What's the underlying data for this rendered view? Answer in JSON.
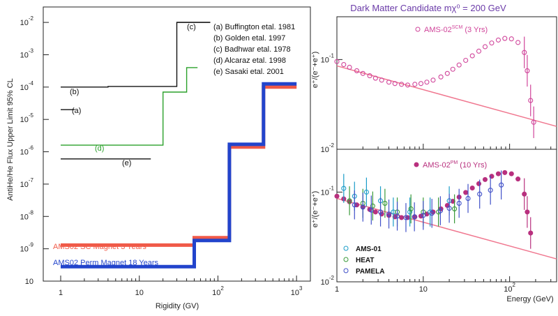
{
  "chart_data": [
    {
      "type": "line",
      "xlabel": "Rigidity (GV)",
      "ylabel": "AntiHe/He Flux  Upper Limit  95% CL",
      "xscale": "log",
      "yscale": "log",
      "xlim": [
        0.6,
        1500
      ],
      "ylim": [
        1e-10,
        0.03
      ],
      "x_ticks": [
        {
          "base": "1",
          "exp": ""
        },
        {
          "base": "10",
          "exp": ""
        },
        {
          "base": "10",
          "exp": "2"
        },
        {
          "base": "10",
          "exp": "3"
        }
      ],
      "y_ticks": [
        {
          "base": "10",
          "exp": "-2"
        },
        {
          "base": "10",
          "exp": "-3"
        },
        {
          "base": "10",
          "exp": "-4"
        },
        {
          "base": "10",
          "exp": "-5"
        },
        {
          "base": "10",
          "exp": "-6"
        },
        {
          "base": "10",
          "exp": "-7"
        },
        {
          "base": "10",
          "exp": "-8"
        },
        {
          "base": "10",
          "exp": "-9"
        },
        {
          "base": "10",
          "exp": ""
        }
      ],
      "legend": [
        "(a) Buffington etal. 1981",
        "(b) Golden etal. 1997",
        "(c) Badhwar etal. 1978",
        "(d) Alcaraz etal. 1998",
        "(e) Sasaki etal. 2001"
      ],
      "series": [
        {
          "name": "(a)",
          "color": "#111111",
          "points": [
            [
              1,
              2e-05
            ],
            [
              1.5,
              2e-05
            ]
          ]
        },
        {
          "name": "(b)",
          "color": "#111111",
          "points": [
            [
              1,
              0.0001
            ],
            [
              4,
              0.0001
            ],
            [
              4,
              0.000105
            ],
            [
              30,
              0.000105
            ],
            [
              30,
              0.01
            ],
            [
              80,
              0.01
            ]
          ]
        },
        {
          "name": "(c)",
          "color": "#111111",
          "points": [
            [
              30,
              0.01
            ],
            [
              80,
              0.01
            ]
          ]
        },
        {
          "name": "(d)",
          "color": "#2aa02a",
          "points": [
            [
              1,
              1.6e-06
            ],
            [
              20,
              1.6e-06
            ],
            [
              20,
              7e-05
            ],
            [
              40,
              7e-05
            ],
            [
              40,
              0.0004
            ],
            [
              55,
              0.0004
            ]
          ]
        },
        {
          "name": "(e)",
          "color": "#111111",
          "points": [
            [
              1,
              6e-07
            ],
            [
              14,
              6e-07
            ]
          ]
        },
        {
          "name": "AMS02 SC Magnet 3 Years",
          "color": "#f05a48",
          "points": [
            [
              1,
              1.3e-09
            ],
            [
              50,
              1.3e-09
            ],
            [
              50,
              2.2e-09
            ],
            [
              140,
              2.2e-09
            ],
            [
              140,
              1.4e-06
            ],
            [
              380,
              1.4e-06
            ],
            [
              380,
              0.0001
            ],
            [
              1000,
              0.0001
            ]
          ]
        },
        {
          "name": "AMS02 Perm Magnet 18 Years",
          "color": "#2244cc",
          "points": [
            [
              1,
              2.8e-10
            ],
            [
              50,
              2.8e-10
            ],
            [
              50,
              1.8e-09
            ],
            [
              140,
              1.8e-09
            ],
            [
              140,
              1.7e-06
            ],
            [
              380,
              1.7e-06
            ],
            [
              380,
              0.000125
            ],
            [
              1000,
              0.000125
            ]
          ]
        }
      ],
      "labels": [
        "(a)",
        "(b)",
        "(c)",
        "(d)",
        "(e)",
        "AMS02 SC Magnet 3 Years",
        "AMS02 Perm Magnet 18 Years"
      ]
    },
    {
      "type": "scatter",
      "title": "Dark Matter Candidate mχ⁰ = 200 GeV",
      "ylabel": "e⁺/(e⁻+e⁺)",
      "xscale": "log",
      "yscale": "log",
      "xlim": [
        1,
        350
      ],
      "ylim": [
        0.01,
        0.3
      ],
      "y_ticks": [
        {
          "base": "10",
          "exp": "-1"
        },
        {
          "base": "10",
          "exp": "-2"
        }
      ],
      "legend": [
        {
          "base": "AMS-02",
          "sup": "SCM",
          "rest": " (3 Yrs)"
        }
      ],
      "series": [
        {
          "name": "AMS-02 SCM (3 Yrs)",
          "color": "#d0449a",
          "marker": "open-circle",
          "x": [
            1,
            1.2,
            1.4,
            1.7,
            2,
            2.4,
            2.8,
            3.3,
            4,
            4.7,
            5.6,
            6.6,
            8,
            9.4,
            11,
            13,
            16,
            19,
            22,
            26,
            31,
            37,
            44,
            52,
            62,
            74,
            88,
            105,
            125,
            148,
            160,
            175,
            190
          ],
          "y": [
            0.095,
            0.088,
            0.082,
            0.075,
            0.07,
            0.066,
            0.062,
            0.059,
            0.056,
            0.054,
            0.053,
            0.052,
            0.053,
            0.054,
            0.056,
            0.059,
            0.064,
            0.07,
            0.078,
            0.087,
            0.098,
            0.11,
            0.124,
            0.139,
            0.153,
            0.165,
            0.172,
            0.17,
            0.155,
            0.12,
            0.075,
            0.035,
            0.02
          ]
        }
      ]
    },
    {
      "type": "scatter",
      "ylabel": "e⁺/(e⁻+e⁺)",
      "xlabel": "Energy (GeV)",
      "xscale": "log",
      "yscale": "log",
      "xlim": [
        1,
        350
      ],
      "ylim": [
        0.01,
        0.3
      ],
      "x_ticks": [
        {
          "base": "1",
          "exp": ""
        },
        {
          "base": "10",
          "exp": ""
        },
        {
          "base": "10",
          "exp": "2"
        }
      ],
      "y_ticks": [
        {
          "base": "10",
          "exp": "-1"
        },
        {
          "base": "10",
          "exp": "-2"
        }
      ],
      "legend": [
        {
          "base": "AMS-02",
          "sup": "PM",
          "rest": " (10 Yrs)"
        },
        {
          "base": "AMS-01",
          "sup": "",
          "rest": ""
        },
        {
          "base": "HEAT",
          "sup": "",
          "rest": ""
        },
        {
          "base": "PAMELA",
          "sup": "",
          "rest": ""
        }
      ],
      "series": [
        {
          "name": "AMS-02 PM (10 Yrs)",
          "color": "#b8307e",
          "marker": "filled-circle",
          "x": [
            1,
            1.2,
            1.4,
            1.7,
            2,
            2.4,
            2.8,
            3.3,
            4,
            4.7,
            5.6,
            6.6,
            8,
            9.4,
            11,
            13,
            16,
            19,
            22,
            26,
            31,
            37,
            44,
            52,
            62,
            74,
            88,
            105,
            125,
            148,
            160,
            175
          ],
          "y": [
            0.09,
            0.084,
            0.078,
            0.072,
            0.068,
            0.064,
            0.06,
            0.057,
            0.055,
            0.053,
            0.052,
            0.052,
            0.053,
            0.054,
            0.057,
            0.06,
            0.065,
            0.071,
            0.079,
            0.088,
            0.099,
            0.111,
            0.124,
            0.138,
            0.15,
            0.16,
            0.165,
            0.16,
            0.14,
            0.095,
            0.06,
            0.035
          ]
        },
        {
          "name": "AMS-01",
          "color": "#1a9cc8",
          "marker": "open-circle",
          "x": [
            1.2,
            1.6,
            2.2,
            3.2,
            4.5,
            7,
            12,
            20
          ],
          "y": [
            0.11,
            0.09,
            0.1,
            0.08,
            0.06,
            0.06,
            0.06,
            0.08
          ]
        },
        {
          "name": "HEAT",
          "color": "#3a9a3a",
          "marker": "open-circle",
          "x": [
            1.4,
            2,
            2.6,
            3.6,
            5,
            7.2,
            10,
            15,
            23
          ],
          "y": [
            0.08,
            0.075,
            0.07,
            0.075,
            0.06,
            0.065,
            0.06,
            0.06,
            0.065
          ]
        },
        {
          "name": "PAMELA",
          "color": "#4050c8",
          "marker": "open-circle",
          "x": [
            1.6,
            2,
            2.5,
            3.2,
            4,
            5,
            6.3,
            7.9,
            10,
            12.6,
            15.8,
            20,
            26,
            33,
            45,
            60,
            80
          ],
          "y": [
            0.072,
            0.068,
            0.063,
            0.06,
            0.057,
            0.054,
            0.052,
            0.053,
            0.055,
            0.058,
            0.062,
            0.066,
            0.075,
            0.085,
            0.095,
            0.105,
            0.12
          ]
        }
      ]
    }
  ]
}
